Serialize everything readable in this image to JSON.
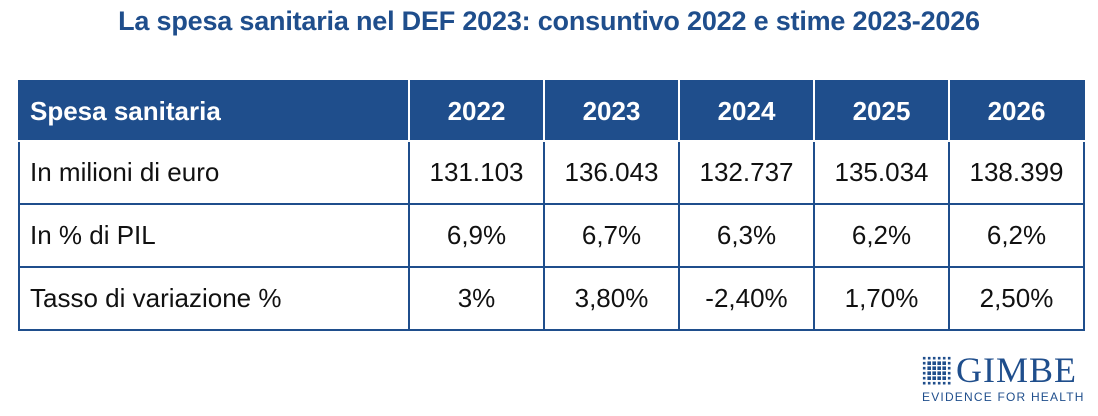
{
  "title": "La spesa sanitaria nel DEF 2023: consuntivo 2022 e stime 2023-2026",
  "table": {
    "header": [
      "Spesa sanitaria",
      "2022",
      "2023",
      "2024",
      "2025",
      "2026"
    ],
    "rows": [
      [
        "In milioni di euro",
        "131.103",
        "136.043",
        "132.737",
        "135.034",
        "138.399"
      ],
      [
        "In % di PIL",
        "6,9%",
        "6,7%",
        "6,3%",
        "6,2%",
        "6,2%"
      ],
      [
        "Tasso di variazione %",
        "3%",
        "3,80%",
        "-2,40%",
        "1,70%",
        "2,50%"
      ]
    ]
  },
  "logo": {
    "word": "GIMBE",
    "tagline": "EVIDENCE FOR HEALTH",
    "color": "#1f4e8c"
  },
  "colors": {
    "header_bg": "#1f4e8c",
    "header_text": "#ffffff",
    "title": "#1f4e8c",
    "border": "#1f4e8c"
  }
}
